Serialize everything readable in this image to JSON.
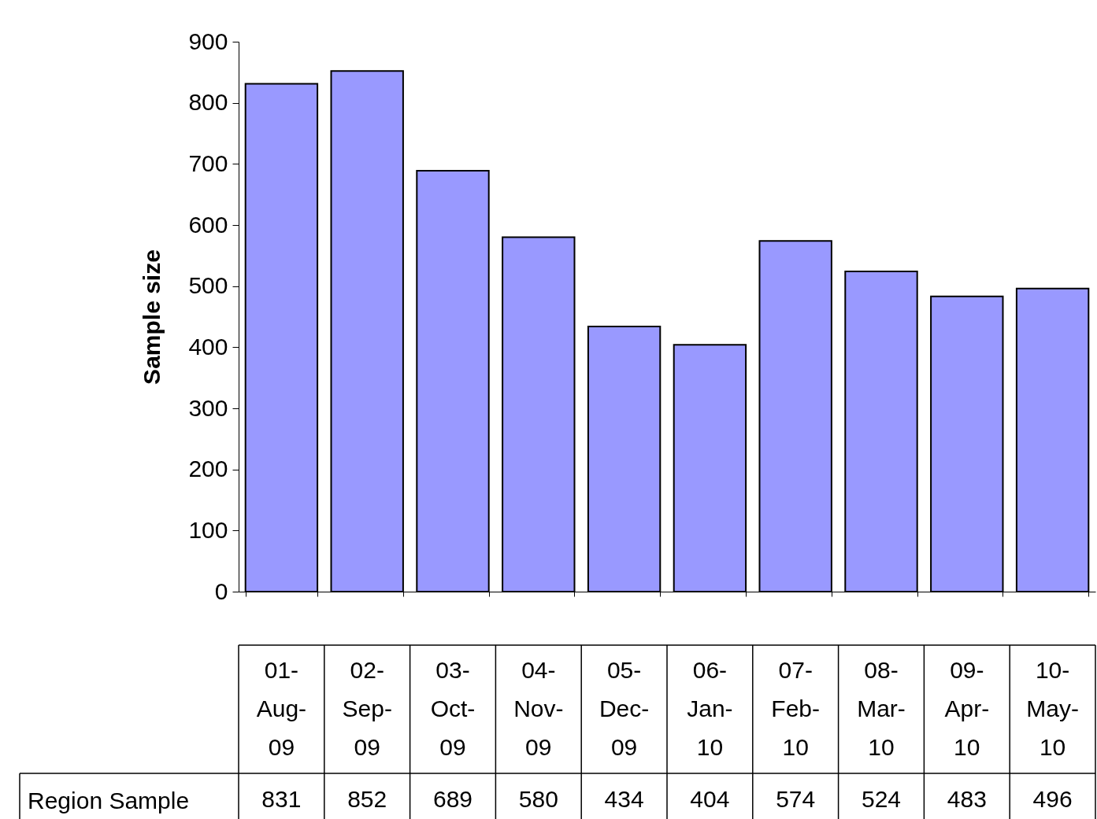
{
  "chart_data": {
    "type": "bar",
    "ylabel": "Sample size",
    "categories": [
      "01-Aug-09",
      "02-Sep-09",
      "03-Oct-09",
      "04-Nov-09",
      "05-Dec-09",
      "06-Jan-10",
      "07-Feb-10",
      "08-Mar-10",
      "09-Apr-10",
      "10-May-10"
    ],
    "series": [
      {
        "name": "Region Sample",
        "color": "#9999ff",
        "values": [
          831,
          852,
          689,
          580,
          434,
          404,
          574,
          524,
          483,
          496
        ]
      }
    ],
    "ylim": [
      0,
      900
    ],
    "yticks": [
      0,
      100,
      200,
      300,
      400,
      500,
      600,
      700,
      800,
      900
    ],
    "data_labels": true
  }
}
